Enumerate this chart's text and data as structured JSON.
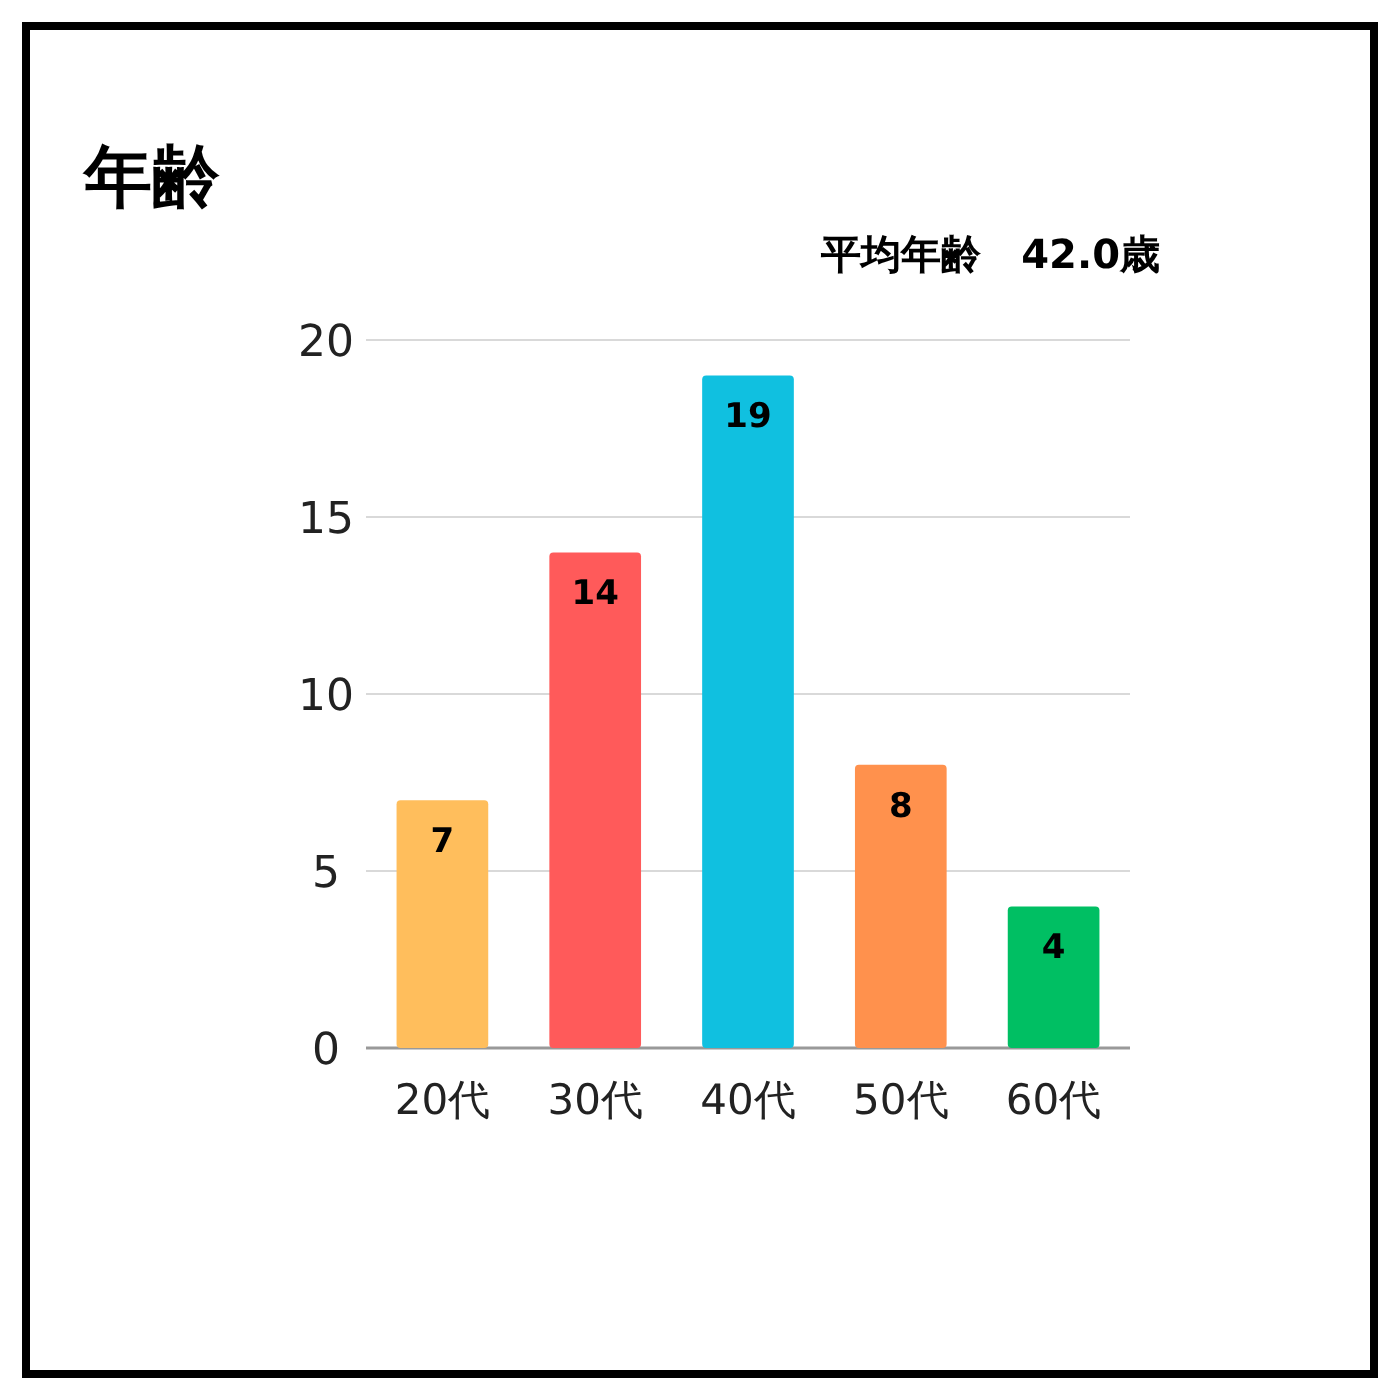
{
  "chart_data": {
    "type": "bar",
    "title": "年齢",
    "subtitle": "平均年齢　42.0歳",
    "categories": [
      "20代",
      "30代",
      "40代",
      "50代",
      "60代"
    ],
    "values": [
      7,
      14,
      19,
      8,
      4
    ],
    "colors": [
      "#ffbe5c",
      "#ff5a5a",
      "#10c0e0",
      "#ff914d",
      "#00bf63"
    ],
    "ylim": [
      0,
      20
    ],
    "yticks": [
      0,
      5,
      10,
      15,
      20
    ],
    "grid": "y",
    "data_labels": true
  }
}
